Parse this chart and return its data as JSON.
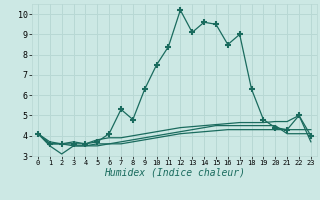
{
  "xlabel": "Humidex (Indice chaleur)",
  "x_values": [
    0,
    1,
    2,
    3,
    4,
    5,
    6,
    7,
    8,
    9,
    10,
    11,
    12,
    13,
    14,
    15,
    16,
    17,
    18,
    19,
    20,
    21,
    22,
    23
  ],
  "main_line": [
    4.1,
    3.6,
    3.6,
    3.6,
    3.6,
    3.7,
    4.1,
    5.3,
    4.8,
    6.3,
    7.5,
    8.4,
    10.2,
    9.1,
    9.6,
    9.5,
    8.5,
    9.0,
    6.3,
    4.8,
    4.4,
    4.3,
    5.0,
    4.0
  ],
  "line2": [
    4.1,
    3.5,
    3.1,
    3.5,
    3.5,
    3.5,
    3.6,
    3.6,
    3.7,
    3.8,
    3.9,
    4.0,
    4.1,
    4.15,
    4.2,
    4.25,
    4.3,
    4.3,
    4.3,
    4.3,
    4.3,
    4.3,
    4.3,
    4.3
  ],
  "line3": [
    4.1,
    3.7,
    3.6,
    3.7,
    3.6,
    3.8,
    3.9,
    3.9,
    4.0,
    4.1,
    4.2,
    4.3,
    4.4,
    4.45,
    4.5,
    4.55,
    4.6,
    4.65,
    4.65,
    4.65,
    4.7,
    4.7,
    5.0,
    3.7
  ],
  "line4": [
    4.1,
    3.6,
    3.6,
    3.5,
    3.5,
    3.6,
    3.6,
    3.7,
    3.8,
    3.9,
    4.0,
    4.1,
    4.2,
    4.3,
    4.4,
    4.5,
    4.5,
    4.5,
    4.5,
    4.5,
    4.5,
    4.1,
    4.1,
    4.1
  ],
  "line_color": "#1a6b5e",
  "bg_color": "#cce8e4",
  "grid_color": "#b8d8d4",
  "ylim": [
    3.0,
    10.5
  ],
  "yticks": [
    3,
    4,
    5,
    6,
    7,
    8,
    9,
    10
  ],
  "marker": "+"
}
